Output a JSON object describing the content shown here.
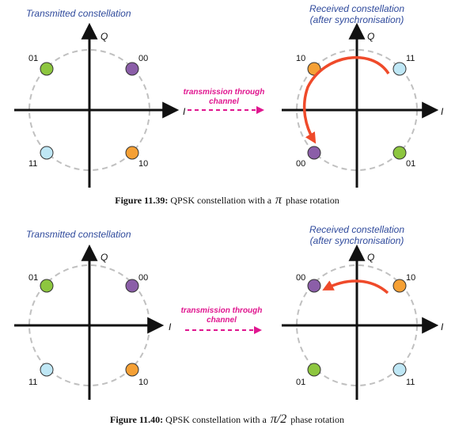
{
  "figures": [
    {
      "transmitted": {
        "title": "Transmitted constellation",
        "axis_q": "Q",
        "axis_i": "I",
        "points": [
          {
            "label": "01",
            "color": "#8dc63f"
          },
          {
            "label": "00",
            "color": "#8b5ea8"
          },
          {
            "label": "11",
            "color": "#bfe7f5"
          },
          {
            "label": "10",
            "color": "#f5a035"
          }
        ]
      },
      "channel": {
        "line1": "transmission through",
        "line2": "channel"
      },
      "received": {
        "title_line1": "Received constellation",
        "title_line2": "(after synchronisation)",
        "axis_q": "Q",
        "axis_i": "I",
        "points": [
          {
            "label": "10",
            "color": "#f5a035"
          },
          {
            "label": "11",
            "color": "#bfe7f5"
          },
          {
            "label": "00",
            "color": "#8b5ea8"
          },
          {
            "label": "01",
            "color": "#8dc63f"
          }
        ]
      },
      "caption": {
        "prefix": "Figure 11.39:",
        "text": " QPSK constellation with a",
        "symbol": "π",
        "suffix": "phase rotation"
      }
    },
    {
      "transmitted": {
        "title": "Transmitted constellation",
        "axis_q": "Q",
        "axis_i": "I",
        "points": [
          {
            "label": "01",
            "color": "#8dc63f"
          },
          {
            "label": "00",
            "color": "#8b5ea8"
          },
          {
            "label": "11",
            "color": "#bfe7f5"
          },
          {
            "label": "10",
            "color": "#f5a035"
          }
        ]
      },
      "channel": {
        "line1": "transmission through",
        "line2": "channel"
      },
      "received": {
        "title_line1": "Received constellation",
        "title_line2": "(after synchronisation)",
        "axis_q": "Q",
        "axis_i": "I",
        "points": [
          {
            "label": "00",
            "color": "#8b5ea8"
          },
          {
            "label": "10",
            "color": "#f5a035"
          },
          {
            "label": "01",
            "color": "#8dc63f"
          },
          {
            "label": "11",
            "color": "#bfe7f5"
          }
        ]
      },
      "caption": {
        "prefix": "Figure 11.40:",
        "text": " QPSK constellation with a",
        "symbol": "π/2",
        "suffix": "phase rotation"
      }
    }
  ],
  "colors": {
    "title": "#2f4a9c",
    "axis": "#111111",
    "circle": "#c0c0c0",
    "channel_arrow": "#e0168f",
    "rotation_arrow": "#ef4a2a"
  }
}
